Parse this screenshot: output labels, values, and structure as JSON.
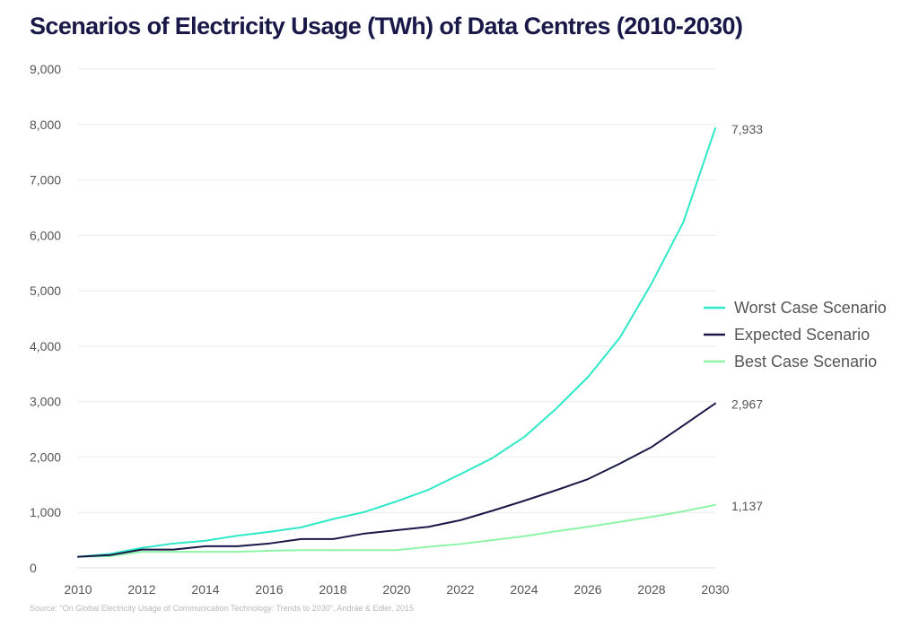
{
  "title": "Scenarios of Electricity Usage (TWh) of Data Centres (2010-2030)",
  "source": "Source: \"On Global Electricity Usage of Communication Technology: Trends to 2030\", Andrae & Edler, 2015",
  "chart_data": {
    "type": "line",
    "title": "Scenarios of Electricity Usage (TWh) of Data Centres (2010-2030)",
    "xlabel": "",
    "ylabel": "",
    "x": [
      2010,
      2011,
      2012,
      2013,
      2014,
      2015,
      2016,
      2017,
      2018,
      2019,
      2020,
      2021,
      2022,
      2023,
      2024,
      2025,
      2026,
      2027,
      2028,
      2029,
      2030
    ],
    "xticks": [
      "2010",
      "2012",
      "2014",
      "2016",
      "2018",
      "2020",
      "2022",
      "2024",
      "2026",
      "2028",
      "2030"
    ],
    "xlim": [
      2010,
      2030
    ],
    "ylim": [
      0,
      9000
    ],
    "yticks": [
      "0",
      "1,000",
      "2,000",
      "3,000",
      "4,000",
      "5,000",
      "6,000",
      "7,000",
      "8,000",
      "9,000"
    ],
    "grid": true,
    "legend_position": "right",
    "series": [
      {
        "name": "Worst Case Scenario",
        "color": "#2ee8c8",
        "values": [
          200,
          250,
          360,
          440,
          490,
          580,
          650,
          730,
          880,
          1010,
          1200,
          1410,
          1690,
          1980,
          2360,
          2870,
          3440,
          4150,
          5130,
          6240,
          7933
        ],
        "end_label": "7,933"
      },
      {
        "name": "Expected Scenario",
        "color": "#1a1848",
        "values": [
          200,
          230,
          330,
          330,
          390,
          390,
          440,
          520,
          520,
          620,
          680,
          740,
          860,
          1030,
          1210,
          1400,
          1600,
          1880,
          2180,
          2570,
          2967
        ],
        "end_label": "2,967"
      },
      {
        "name": "Best Case Scenario",
        "color": "#8ef5a8",
        "values": [
          200,
          210,
          290,
          290,
          290,
          290,
          310,
          320,
          320,
          320,
          320,
          380,
          430,
          500,
          570,
          660,
          740,
          830,
          920,
          1020,
          1137
        ],
        "end_label": "1,137"
      }
    ]
  }
}
